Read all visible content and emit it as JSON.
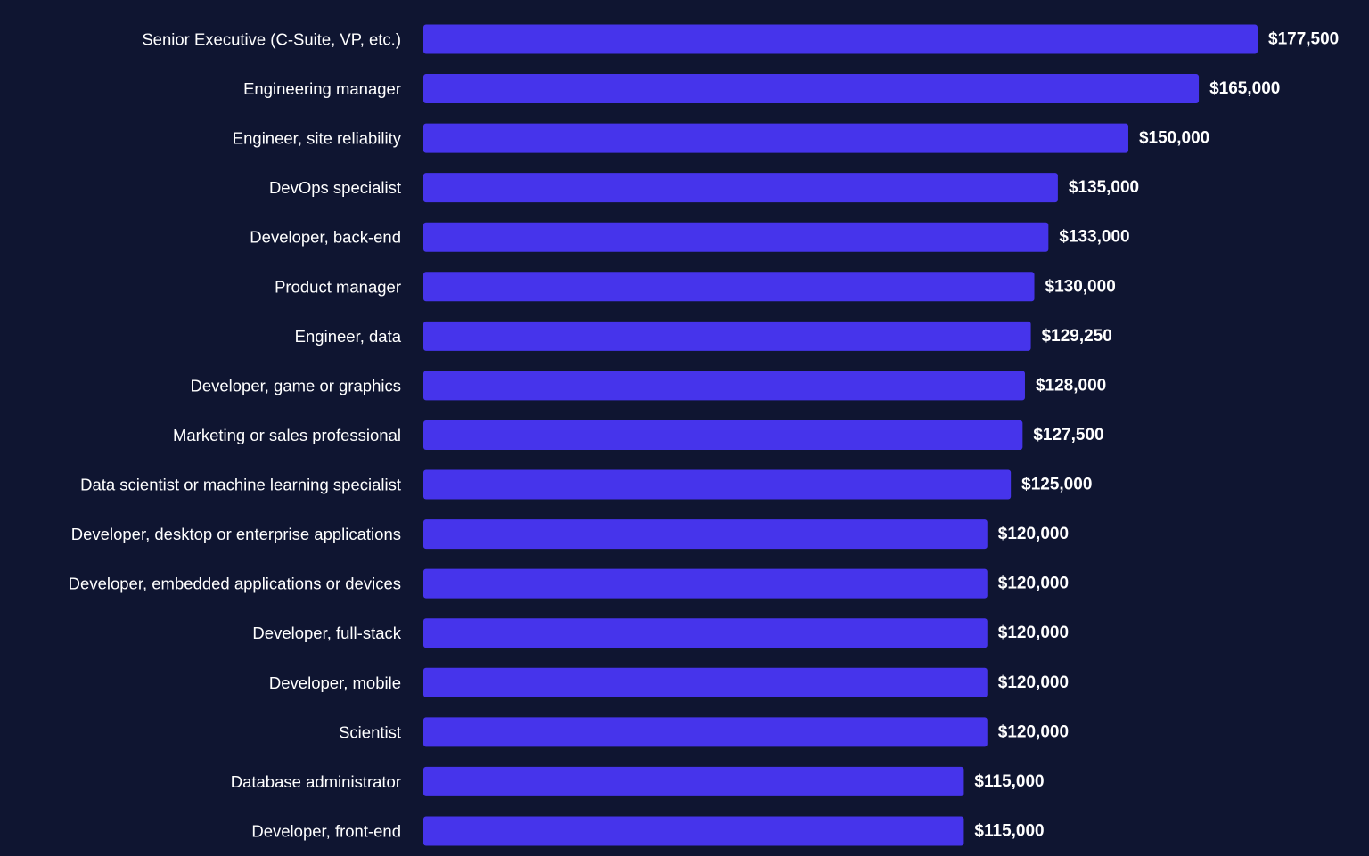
{
  "chart_data": {
    "type": "bar",
    "orientation": "horizontal",
    "categories": [
      "Senior Executive (C-Suite, VP, etc.)",
      "Engineering manager",
      "Engineer, site reliability",
      "DevOps specialist",
      "Developer, back-end",
      "Product manager",
      "Engineer, data",
      "Developer, game or graphics",
      "Marketing or sales professional",
      "Data scientist or machine learning specialist",
      "Developer, desktop or enterprise applications",
      "Developer, embedded applications or devices",
      "Developer, full-stack",
      "Developer, mobile",
      "Scientist",
      "Database administrator",
      "Developer, front-end"
    ],
    "values": [
      177500,
      165000,
      150000,
      135000,
      133000,
      130000,
      129250,
      128000,
      127500,
      125000,
      120000,
      120000,
      120000,
      120000,
      120000,
      115000,
      115000
    ],
    "value_labels": [
      "$177,500",
      "$165,000",
      "$150,000",
      "$135,000",
      "$133,000",
      "$130,000",
      "$129,250",
      "$128,000",
      "$127,500",
      "$125,000",
      "$120,000",
      "$120,000",
      "$120,000",
      "$120,000",
      "$120,000",
      "$115,000",
      "$115,000"
    ],
    "xlim": [
      0,
      177500
    ],
    "grid": false,
    "legend": "none",
    "bar_color": "#4634eb",
    "background_color": "#0f1531",
    "text_color": "#ffffff"
  }
}
